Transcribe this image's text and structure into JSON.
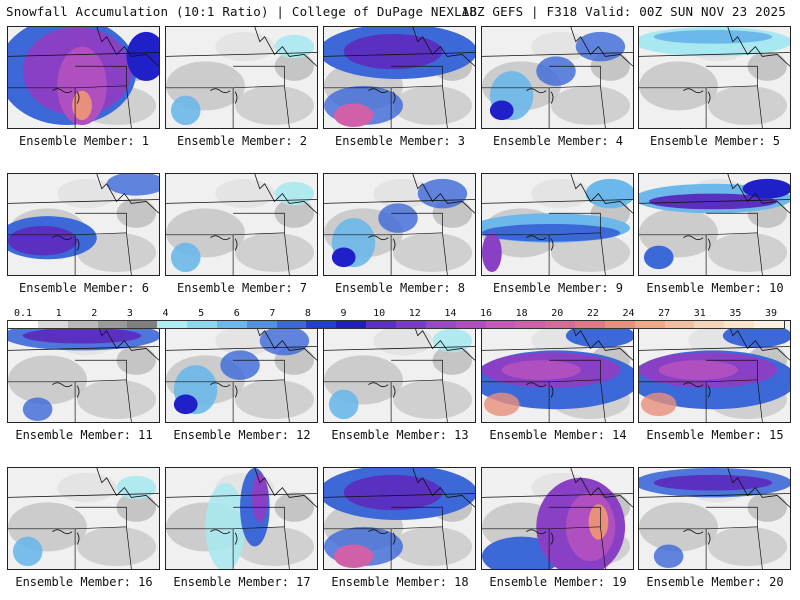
{
  "header": {
    "left": "Snowfall Accumulation (10:1 Ratio) | College of DuPage NEXLAB",
    "right": "18Z GEFS | F318 Valid: 00Z SUN NOV 23 2025"
  },
  "member_label_prefix": "Ensemble Member: ",
  "members": [
    {
      "label": "Ensemble Member: 1",
      "intensity": "heavy-west"
    },
    {
      "label": "Ensemble Member: 2",
      "intensity": "light"
    },
    {
      "label": "Ensemble Member: 3",
      "intensity": "heavy-north"
    },
    {
      "label": "Ensemble Member: 4",
      "intensity": "moderate"
    },
    {
      "label": "Ensemble Member: 5",
      "intensity": "light-north"
    },
    {
      "label": "Ensemble Member: 6",
      "intensity": "moderate-west"
    },
    {
      "label": "Ensemble Member: 7",
      "intensity": "light"
    },
    {
      "label": "Ensemble Member: 8",
      "intensity": "moderate"
    },
    {
      "label": "Ensemble Member: 9",
      "intensity": "band"
    },
    {
      "label": "Ensemble Member: 10",
      "intensity": "band-north"
    },
    {
      "label": "Ensemble Member: 11",
      "intensity": "moderate-north"
    },
    {
      "label": "Ensemble Member: 12",
      "intensity": "moderate"
    },
    {
      "label": "Ensemble Member: 13",
      "intensity": "light"
    },
    {
      "label": "Ensemble Member: 14",
      "intensity": "heavy-band"
    },
    {
      "label": "Ensemble Member: 15",
      "intensity": "heavy-band"
    },
    {
      "label": "Ensemble Member: 16",
      "intensity": "light"
    },
    {
      "label": "Ensemble Member: 17",
      "intensity": "moderate-diag"
    },
    {
      "label": "Ensemble Member: 18",
      "intensity": "heavy-north"
    },
    {
      "label": "Ensemble Member: 19",
      "intensity": "heavy-east"
    },
    {
      "label": "Ensemble Member: 20",
      "intensity": "moderate-north"
    }
  ],
  "colorbar": {
    "labels": [
      "0.1",
      "1",
      "2",
      "3",
      "4",
      "5",
      "6",
      "7",
      "8",
      "9",
      "10",
      "12",
      "14",
      "16",
      "18",
      "20",
      "22",
      "24",
      "27",
      "31",
      "35",
      "39"
    ],
    "colors": [
      "#ffffff",
      "#d9d9d9",
      "#b8b8b8",
      "#9a9a9a",
      "#808080",
      "#b0ecf4",
      "#8ed8ef",
      "#6cb8ea",
      "#5290e2",
      "#3c68d8",
      "#2040cc",
      "#2020b8",
      "#5a30c0",
      "#7a3cc4",
      "#9848c4",
      "#b050c0",
      "#c858b8",
      "#d060a8",
      "#d86a98",
      "#e07888",
      "#e8907c",
      "#eeaa88",
      "#f2c0a0",
      "#f6d4b8",
      "#f9e4cc",
      "#fcf2e4"
    ]
  }
}
